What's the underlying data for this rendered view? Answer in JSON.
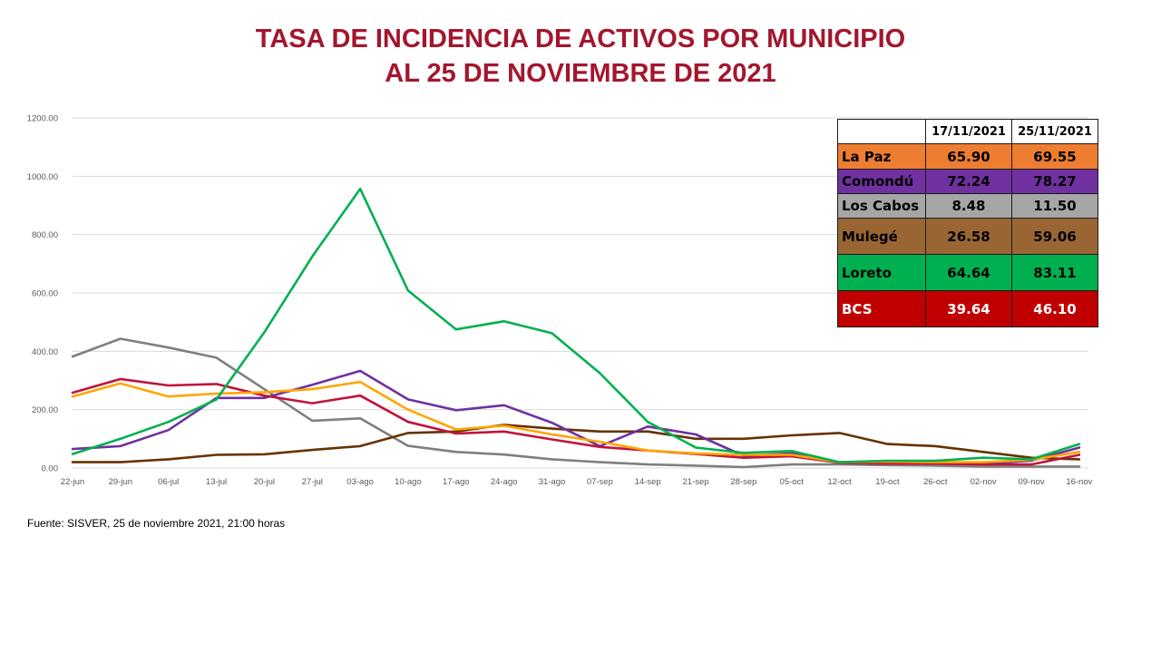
{
  "title": {
    "line1": "TASA DE INCIDENCIA  DE ACTIVOS POR MUNICIPIO",
    "line2": "AL 25 DE NOVIEMBRE  DE 2021"
  },
  "source": "Fuente: SISVER,  25 de noviembre  2021, 21:00 horas",
  "table": {
    "headers": [
      "",
      "17/11/2021",
      "25/11/2021"
    ],
    "rows": [
      {
        "name": "La Paz",
        "v1": "65.90",
        "v2": "69.55",
        "bg": "#ed7d31",
        "fg": "#000000"
      },
      {
        "name": "Comondú",
        "v1": "72.24",
        "v2": "78.27",
        "bg": "#7030a0",
        "fg": "#000000"
      },
      {
        "name": "Los Cabos",
        "v1": "8.48",
        "v2": "11.50",
        "bg": "#a6a6a6",
        "fg": "#000000"
      },
      {
        "name": "Mulegé",
        "v1": "26.58",
        "v2": "59.06",
        "bg": "#996633",
        "fg": "#000000"
      },
      {
        "name": "Loreto",
        "v1": "64.64",
        "v2": "83.11",
        "bg": "#00b050",
        "fg": "#000000"
      },
      {
        "name": "BCS",
        "v1": "39.64",
        "v2": "46.10",
        "bg": "#c00000",
        "fg": "#ffffff"
      }
    ]
  },
  "chart_data": {
    "type": "line",
    "title": "",
    "xlabel": "",
    "ylabel": "",
    "ylim": [
      0,
      1200
    ],
    "yticks": [
      "0.00",
      "200.00",
      "400.00",
      "600.00",
      "800.00",
      "1000.00",
      "1200.00"
    ],
    "grid": true,
    "categories": [
      "22-jun",
      "29-jun",
      "06-jul",
      "13-jul",
      "20-jul",
      "27-jul",
      "03-ago",
      "10-ago",
      "17-ago",
      "24-ago",
      "31-ago",
      "07-sep",
      "14-sep",
      "21-sep",
      "28-sep",
      "05-oct",
      "12-oct",
      "19-oct",
      "26-oct",
      "02-nov",
      "09-nov",
      "16-nov"
    ],
    "series": [
      {
        "color": "#7f7f7f",
        "values": [
          382,
          443,
          413,
          378,
          270,
          162,
          170,
          76,
          55,
          46,
          30,
          20,
          12,
          8,
          3,
          12,
          12,
          10,
          8,
          5,
          5,
          5
        ]
      },
      {
        "color": "#663300",
        "values": [
          20,
          20,
          30,
          45,
          47,
          62,
          75,
          120,
          125,
          148,
          135,
          125,
          125,
          100,
          100,
          112,
          120,
          82,
          75,
          55,
          35,
          30
        ]
      },
      {
        "color": "#7030a0",
        "values": [
          65,
          75,
          130,
          240,
          240,
          285,
          333,
          235,
          198,
          215,
          155,
          75,
          142,
          115,
          42,
          50,
          18,
          15,
          18,
          15,
          25,
          70
        ]
      },
      {
        "color": "#c0143c",
        "values": [
          258,
          305,
          283,
          288,
          248,
          222,
          248,
          158,
          118,
          125,
          98,
          72,
          60,
          48,
          35,
          40,
          18,
          15,
          15,
          12,
          12,
          45
        ]
      },
      {
        "color": "#ffa500",
        "values": [
          245,
          290,
          245,
          255,
          260,
          270,
          295,
          200,
          132,
          145,
          115,
          90,
          60,
          50,
          45,
          45,
          20,
          22,
          20,
          20,
          28,
          55
        ]
      },
      {
        "color": "#00b050",
        "values": [
          48,
          100,
          158,
          235,
          465,
          725,
          957,
          608,
          475,
          503,
          462,
          325,
          158,
          70,
          52,
          58,
          20,
          25,
          25,
          35,
          30,
          82
        ]
      }
    ]
  }
}
